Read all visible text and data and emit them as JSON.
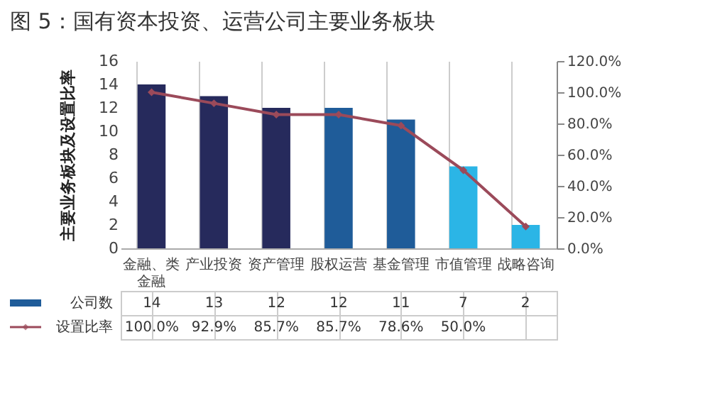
{
  "chart_data": {
    "type": "bar",
    "title": "图 5：国有资本投资、运营公司主要业务板块",
    "ylabel": "主要业务板块及设置比率",
    "categories": [
      "金融、类金融",
      "产业投资",
      "资产管理",
      "股权运营",
      "基金管理",
      "市值管理",
      "战略咨询"
    ],
    "series": [
      {
        "name": "公司数",
        "color": "#1f5c99",
        "colors": [
          "#262a5c",
          "#262a5c",
          "#262a5c",
          "#1f5c99",
          "#1f5c99",
          "#2bb5e6",
          "#2bb5e6"
        ],
        "values": [
          14,
          13,
          12,
          12,
          11,
          7,
          2
        ]
      },
      {
        "name": "设置比率",
        "type": "line",
        "axis": "y2",
        "color": "#9b4a5a",
        "marker": "diamond",
        "values": [
          100.0,
          92.9,
          85.7,
          85.7,
          78.6,
          50.0,
          14
        ],
        "value_labels": [
          "100.0%",
          "92.9%",
          "85.7%",
          "85.7%",
          "78.6%",
          "50.0%",
          null
        ]
      }
    ],
    "ylim": [
      0,
      16
    ],
    "yticks": [
      0,
      2,
      4,
      6,
      8,
      10,
      12,
      14,
      16
    ],
    "y2lim": [
      0,
      120
    ],
    "y2ticks": [
      {
        "value": 0,
        "label": "0.0%"
      },
      {
        "value": 20,
        "label": "20.0%"
      },
      {
        "value": 40,
        "label": "40.0%"
      },
      {
        "value": 60,
        "label": "60.0%"
      },
      {
        "value": 80,
        "label": "80.0%"
      },
      {
        "value": 100,
        "label": "100.0%"
      },
      {
        "value": 120,
        "label": "120.0%"
      }
    ],
    "data_labels": true,
    "legend": "bottom",
    "grid": false
  }
}
